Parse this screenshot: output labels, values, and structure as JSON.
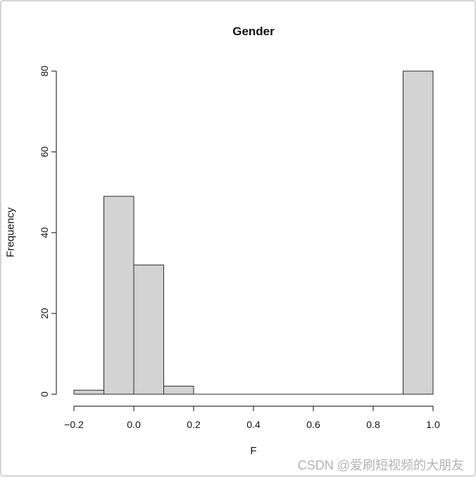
{
  "watermark": {
    "text": "CSDN @爱刷短视频的大朋友",
    "color": "#b3b3b3"
  },
  "chart_data": {
    "type": "bar",
    "subtype": "histogram",
    "title": "Gender",
    "xlabel": "F",
    "ylabel": "Frequency",
    "breaks": [
      -0.2,
      -0.1,
      0.0,
      0.1,
      0.2,
      0.3,
      0.4,
      0.5,
      0.6,
      0.7,
      0.8,
      0.9,
      1.0
    ],
    "counts": [
      1,
      49,
      32,
      2,
      0,
      0,
      0,
      0,
      0,
      0,
      0,
      80
    ],
    "x_ticks": [
      -0.2,
      0.0,
      0.2,
      0.4,
      0.6,
      0.8,
      1.0
    ],
    "x_tick_labels": [
      "−0.2",
      "0.0",
      "0.2",
      "0.4",
      "0.6",
      "0.8",
      "1.0"
    ],
    "y_ticks": [
      0,
      20,
      40,
      60,
      80
    ],
    "y_tick_labels": [
      "0",
      "20",
      "40",
      "60",
      "80"
    ],
    "xlim": [
      -0.2,
      1.0
    ],
    "ylim": [
      0,
      80
    ],
    "grid": false,
    "legend": null,
    "bar_fill": "#d3d3d3",
    "bar_stroke": "#2b2b2b",
    "axis_color": "#333333",
    "background": "#ffffff"
  }
}
